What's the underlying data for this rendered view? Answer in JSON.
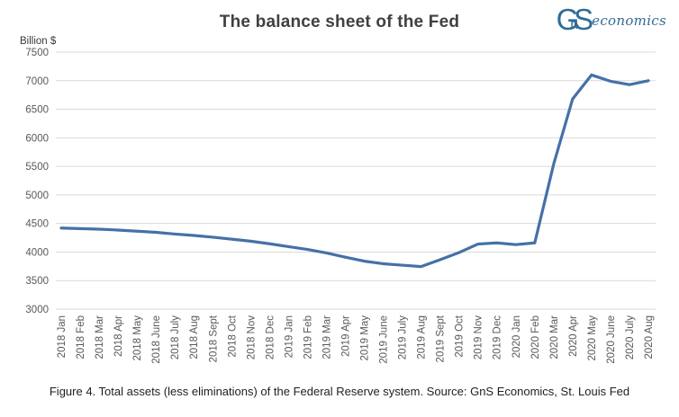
{
  "header": {
    "title": "The balance sheet of the Fed",
    "logo": {
      "g": "G",
      "n": "n",
      "s": "S",
      "suffix": "economics",
      "color": "#2f6b94"
    }
  },
  "chart_data": {
    "type": "line",
    "title": "The balance sheet of the Fed",
    "ylabel": "Billion $",
    "xlabel": "",
    "ylim": [
      3000,
      7500
    ],
    "ytick_step": 500,
    "grid": true,
    "legend": "none",
    "line_color": "#4670a8",
    "grid_color": "#d9d9d9",
    "tick_color": "#595959",
    "categories": [
      "2018 Jan",
      "2018 Feb",
      "2018 Mar",
      "2018 Apr",
      "2018 May",
      "2018 June",
      "2018 July",
      "2018 Aug",
      "2018 Sept",
      "2018 Oct",
      "2018 Nov",
      "2018 Dec",
      "2019 Jan",
      "2019 Feb",
      "2019 Mar",
      "2019 Apr",
      "2019 May",
      "2019 June",
      "2019 July",
      "2019 Aug",
      "2019 Sept",
      "2019 Oct",
      "2019 Nov",
      "2019 Dec",
      "2020 Jan",
      "2020 Feb",
      "2020 Mar",
      "2020 Apr",
      "2020 May",
      "2020 June",
      "2020 July",
      "2020 Aug"
    ],
    "values": [
      4420,
      4410,
      4400,
      4385,
      4365,
      4345,
      4315,
      4290,
      4260,
      4225,
      4190,
      4145,
      4095,
      4045,
      3985,
      3910,
      3840,
      3795,
      3770,
      3745,
      3865,
      3990,
      4140,
      4160,
      4130,
      4160,
      5540,
      6680,
      7100,
      6990,
      6930,
      7000
    ]
  },
  "caption": "Figure 4. Total assets (less eliminations) of the Federal Reserve system. Source: GnS Economics, St. Louis Fed"
}
